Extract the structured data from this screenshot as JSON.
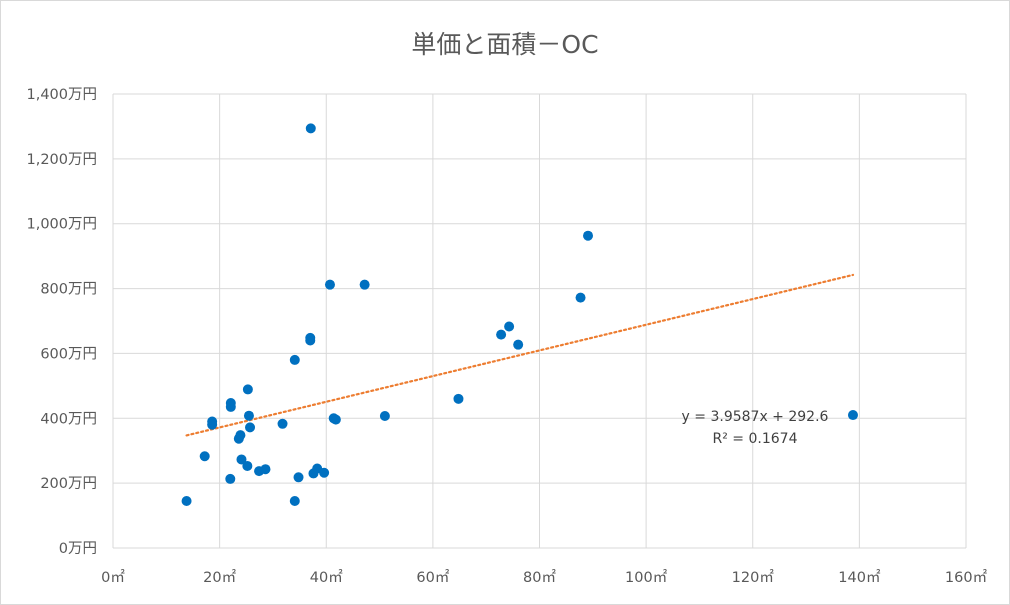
{
  "chart_data": {
    "type": "scatter",
    "title": "単価と面積－OC",
    "xlabel": "",
    "ylabel": "",
    "xlim": [
      0,
      160
    ],
    "ylim": [
      0,
      1400
    ],
    "x_ticks": [
      0,
      20,
      40,
      60,
      80,
      100,
      120,
      140,
      160
    ],
    "y_ticks": [
      0,
      200,
      400,
      600,
      800,
      1000,
      1200,
      1400
    ],
    "x_tick_labels": [
      "0㎡",
      "20㎡",
      "40㎡",
      "60㎡",
      "80㎡",
      "100㎡",
      "120㎡",
      "140㎡",
      "160㎡"
    ],
    "y_tick_labels": [
      "0万円",
      "200万円",
      "400万円",
      "600万円",
      "800万円",
      "1,000万円",
      "1,200万円",
      "1,400万円"
    ],
    "grid": true,
    "legend": "none",
    "series": [
      {
        "color": "#0070c0",
        "points": [
          [
            13.8,
            145
          ],
          [
            17.2,
            283
          ],
          [
            18.6,
            380
          ],
          [
            18.6,
            390
          ],
          [
            22.0,
            213
          ],
          [
            22.1,
            435
          ],
          [
            22.1,
            447
          ],
          [
            23.6,
            337
          ],
          [
            23.9,
            348
          ],
          [
            24.1,
            273
          ],
          [
            25.2,
            253
          ],
          [
            25.3,
            489
          ],
          [
            25.5,
            408
          ],
          [
            25.7,
            372
          ],
          [
            27.4,
            237
          ],
          [
            28.6,
            243
          ],
          [
            31.8,
            383
          ],
          [
            34.1,
            145
          ],
          [
            34.1,
            580
          ],
          [
            34.8,
            218
          ],
          [
            37.0,
            640
          ],
          [
            37.0,
            648
          ],
          [
            37.1,
            1294
          ],
          [
            37.6,
            230
          ],
          [
            38.3,
            245
          ],
          [
            39.6,
            232
          ],
          [
            40.7,
            812
          ],
          [
            41.4,
            400
          ],
          [
            41.8,
            396
          ],
          [
            47.2,
            812
          ],
          [
            51.0,
            407
          ],
          [
            64.8,
            460
          ],
          [
            72.8,
            658
          ],
          [
            74.3,
            683
          ],
          [
            76.0,
            627
          ],
          [
            87.7,
            772
          ],
          [
            89.1,
            963
          ],
          [
            138.8,
            410
          ]
        ]
      }
    ],
    "trendline": {
      "type": "linear",
      "slope": 3.9587,
      "intercept": 292.6,
      "x_range": [
        13.8,
        138.8
      ],
      "color": "#ed7d31",
      "style": "dotted",
      "equation_label": "y = 3.9587x + 292.6",
      "r2_label": "R² = 0.1674"
    }
  }
}
